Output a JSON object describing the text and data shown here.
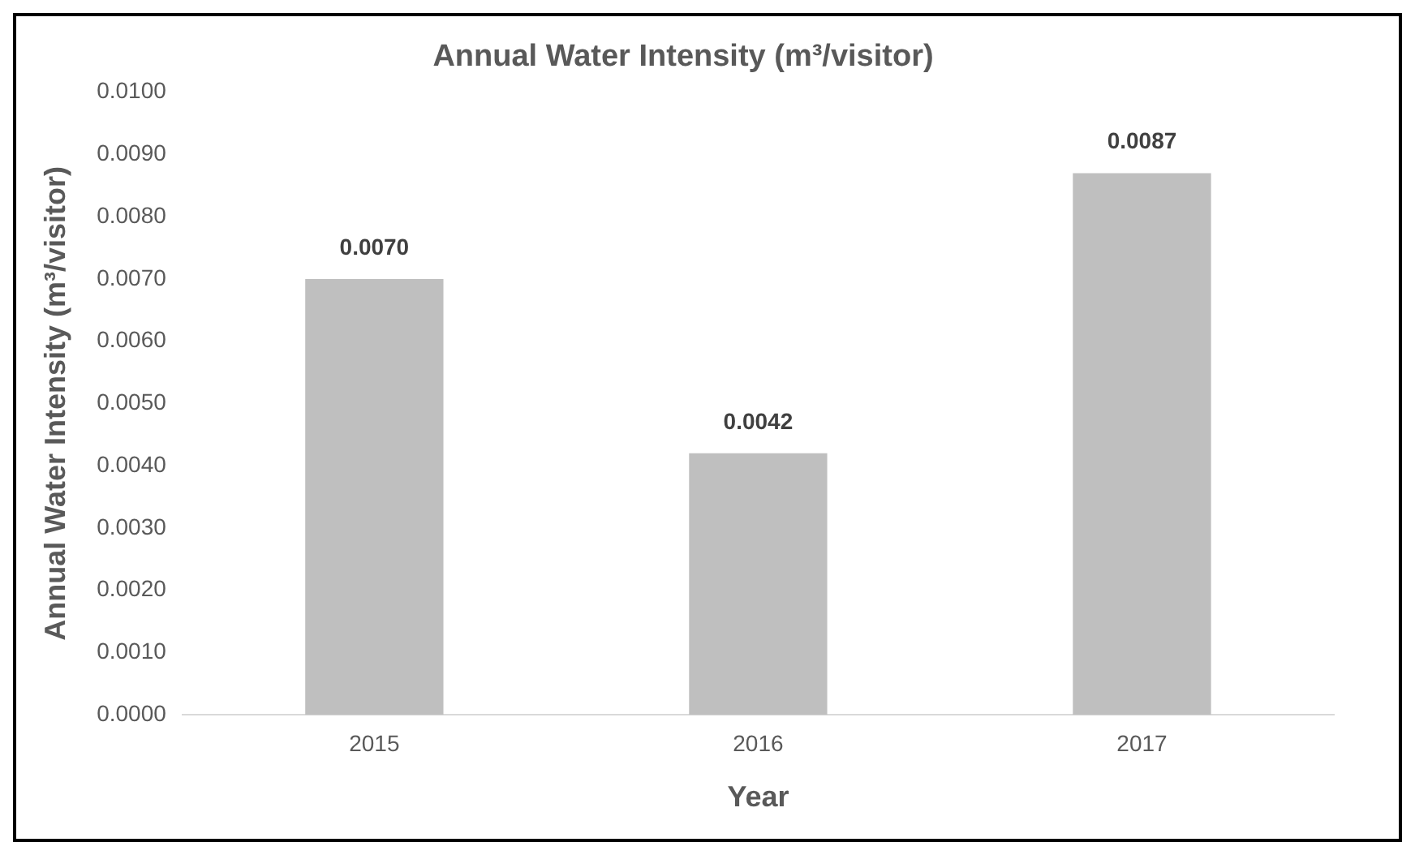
{
  "chart_data": {
    "type": "bar",
    "title": "Annual Water Intensity (m³/visitor)",
    "xlabel": "Year",
    "ylabel": "Annual Water Intensity (m³/visitor)",
    "categories": [
      "2015",
      "2016",
      "2017"
    ],
    "values": [
      0.007,
      0.0042,
      0.0087
    ],
    "value_labels": [
      "0.0070",
      "0.0042",
      "0.0087"
    ],
    "color": "#bfbfbf",
    "ylim": [
      0,
      0.01
    ],
    "yticks": [
      {
        "value": 0,
        "label": "0.0000"
      },
      {
        "value": 0.001,
        "label": "0.0010"
      },
      {
        "value": 0.002,
        "label": "0.0020"
      },
      {
        "value": 0.003,
        "label": "0.0030"
      },
      {
        "value": 0.004,
        "label": "0.0040"
      },
      {
        "value": 0.005,
        "label": "0.0050"
      },
      {
        "value": 0.006,
        "label": "0.0060"
      },
      {
        "value": 0.007,
        "label": "0.0070"
      },
      {
        "value": 0.008,
        "label": "0.0080"
      },
      {
        "value": 0.009,
        "label": "0.0090"
      },
      {
        "value": 0.01,
        "label": "0.0100"
      }
    ],
    "grid": false,
    "legend": false
  }
}
